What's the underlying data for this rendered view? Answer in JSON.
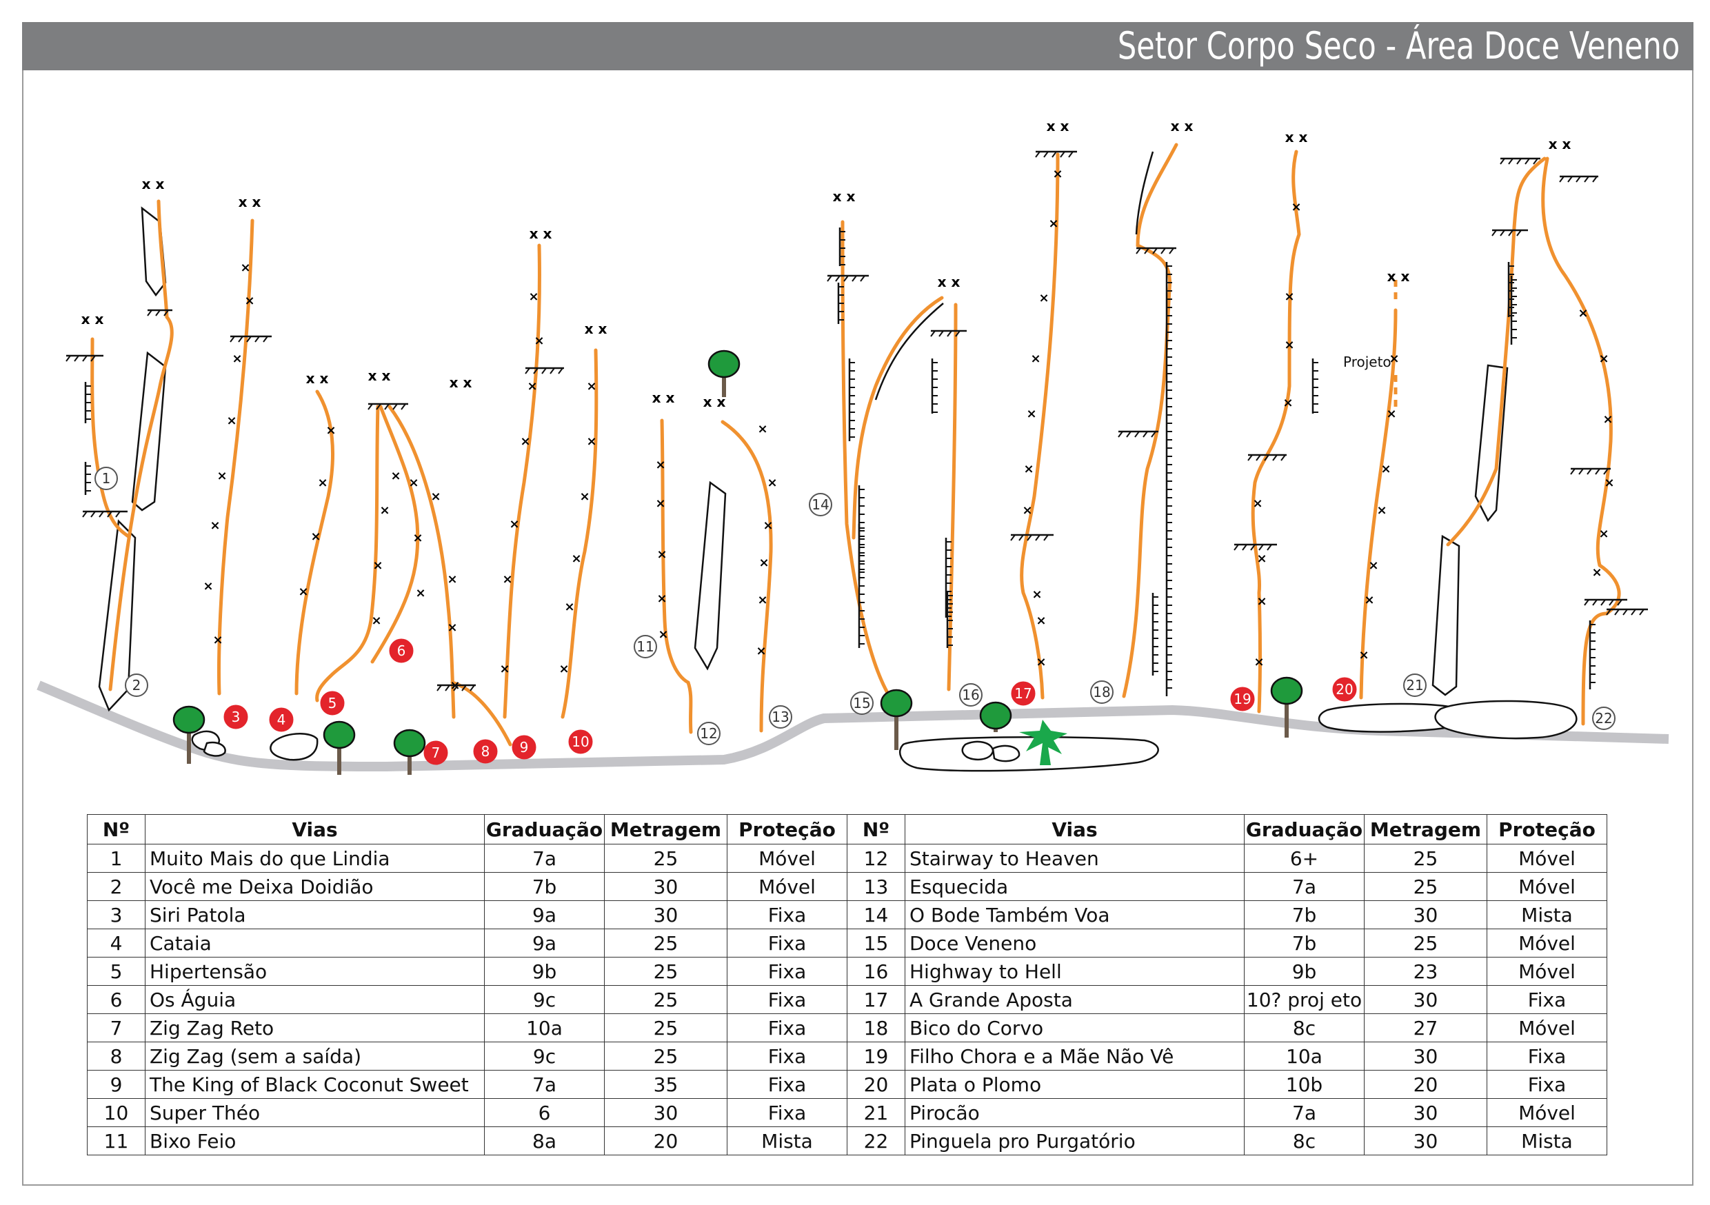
{
  "title": "Setor Corpo Seco - Área Doce Veneno",
  "topo": {
    "project_label": "Projeto",
    "anchor_mark": "x x",
    "colors": {
      "route": "#f0912f",
      "ground": "#c4c4c8",
      "marker_red": "#e3242b",
      "marker_outline": "#555555",
      "tree": "#1f9a3c",
      "trunk": "#6b5a4a",
      "palm": "#1aa84b"
    },
    "markers": [
      {
        "n": "1",
        "style": "outline"
      },
      {
        "n": "2",
        "style": "outline"
      },
      {
        "n": "3",
        "style": "red"
      },
      {
        "n": "4",
        "style": "red"
      },
      {
        "n": "5",
        "style": "red"
      },
      {
        "n": "6",
        "style": "red"
      },
      {
        "n": "7",
        "style": "red"
      },
      {
        "n": "8",
        "style": "red"
      },
      {
        "n": "9",
        "style": "red"
      },
      {
        "n": "10",
        "style": "red"
      },
      {
        "n": "11",
        "style": "outline"
      },
      {
        "n": "12",
        "style": "outline"
      },
      {
        "n": "13",
        "style": "outline"
      },
      {
        "n": "14",
        "style": "outline"
      },
      {
        "n": "15",
        "style": "outline"
      },
      {
        "n": "16",
        "style": "outline"
      },
      {
        "n": "17",
        "style": "red"
      },
      {
        "n": "18",
        "style": "outline"
      },
      {
        "n": "19",
        "style": "red"
      },
      {
        "n": "20",
        "style": "red"
      },
      {
        "n": "21",
        "style": "outline"
      },
      {
        "n": "22",
        "style": "outline"
      }
    ]
  },
  "table": {
    "headers": [
      "Nº",
      "Vias",
      "Graduação",
      "Metragem",
      "Proteção"
    ],
    "rows": [
      {
        "n": "1",
        "via": "Muito Mais do que Lindia",
        "grad": "7a",
        "metr": "25",
        "prot": "Móvel"
      },
      {
        "n": "2",
        "via": "Você me Deixa Doidião",
        "grad": "7b",
        "metr": "30",
        "prot": "Móvel"
      },
      {
        "n": "3",
        "via": "Siri Patola",
        "grad": "9a",
        "metr": "30",
        "prot": "Fixa"
      },
      {
        "n": "4",
        "via": "Cataia",
        "grad": "9a",
        "metr": "25",
        "prot": "Fixa"
      },
      {
        "n": "5",
        "via": "Hipertensão",
        "grad": "9b",
        "metr": "25",
        "prot": "Fixa"
      },
      {
        "n": "6",
        "via": "Os Águia",
        "grad": "9c",
        "metr": "25",
        "prot": "Fixa"
      },
      {
        "n": "7",
        "via": "Zig Zag Reto",
        "grad": "10a",
        "metr": "25",
        "prot": "Fixa"
      },
      {
        "n": "8",
        "via": "Zig Zag (sem a saída)",
        "grad": "9c",
        "metr": "25",
        "prot": "Fixa"
      },
      {
        "n": "9",
        "via": "The King of  Black Coconut Sweet",
        "grad": "7a",
        "metr": "35",
        "prot": "Fixa"
      },
      {
        "n": "10",
        "via": "Super Théo",
        "grad": "6",
        "metr": "30",
        "prot": "Fixa"
      },
      {
        "n": "11",
        "via": "Bixo Feio",
        "grad": "8a",
        "metr": "20",
        "prot": "Mista"
      },
      {
        "n": "12",
        "via": "Stairway to Heaven",
        "grad": "6+",
        "metr": "25",
        "prot": "Móvel"
      },
      {
        "n": "13",
        "via": "Esquecida",
        "grad": "7a",
        "metr": "25",
        "prot": "Móvel"
      },
      {
        "n": "14",
        "via": "O Bode Também Voa",
        "grad": "7b",
        "metr": "30",
        "prot": "Mista"
      },
      {
        "n": "15",
        "via": "Doce Veneno",
        "grad": "7b",
        "metr": "25",
        "prot": "Móvel"
      },
      {
        "n": "16",
        "via": "Highway to Hell",
        "grad": "9b",
        "metr": "23",
        "prot": "Móvel"
      },
      {
        "n": "17",
        "via": "A Grande Aposta",
        "grad": "10? proj eto",
        "metr": "30",
        "prot": "Fixa"
      },
      {
        "n": "18",
        "via": "Bico do Corvo",
        "grad": "8c",
        "metr": "27",
        "prot": "Móvel"
      },
      {
        "n": "19",
        "via": "Filho Chora e a Mãe Não Vê",
        "grad": "10a",
        "metr": "30",
        "prot": "Fixa"
      },
      {
        "n": "20",
        "via": "Plata o Plomo",
        "grad": "10b",
        "metr": "20",
        "prot": "Fixa"
      },
      {
        "n": "21",
        "via": "Pirocão",
        "grad": "7a",
        "metr": "30",
        "prot": "Móvel"
      },
      {
        "n": "22",
        "via": "Pinguela pro Purgatório",
        "grad": "8c",
        "metr": "30",
        "prot": "Mista"
      }
    ]
  }
}
